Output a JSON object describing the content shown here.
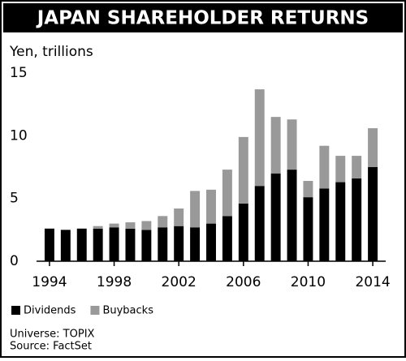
{
  "chart_data": {
    "type": "bar",
    "stacked": true,
    "title": "JAPAN SHAREHOLDER RETURNS",
    "y_label": "Yen, trillions",
    "x": [
      1994,
      1995,
      1996,
      1997,
      1998,
      1999,
      2000,
      2001,
      2002,
      2003,
      2004,
      2005,
      2006,
      2007,
      2008,
      2009,
      2010,
      2011,
      2012,
      2013,
      2014
    ],
    "xlim": [
      1993.2,
      2014.8
    ],
    "xticks": [
      1994,
      1998,
      2002,
      2006,
      2010,
      2014
    ],
    "ylim": [
      0,
      15
    ],
    "yticks": [
      0,
      5,
      10,
      15
    ],
    "series": [
      {
        "name": "Dividends",
        "color": "#000000",
        "values": [
          2.6,
          2.5,
          2.6,
          2.6,
          2.7,
          2.6,
          2.5,
          2.7,
          2.8,
          2.7,
          3.0,
          3.6,
          4.6,
          6.0,
          7.0,
          7.3,
          5.1,
          5.8,
          6.3,
          6.6,
          7.5
        ]
      },
      {
        "name": "Buybacks",
        "color": "#999999",
        "values": [
          0,
          0,
          0,
          0.2,
          0.3,
          0.5,
          0.7,
          0.9,
          1.4,
          2.9,
          2.7,
          3.7,
          5.3,
          7.7,
          4.5,
          4.0,
          1.3,
          3.4,
          2.1,
          1.8,
          3.1
        ]
      }
    ],
    "notes": [
      "Universe: TOPIX",
      "Source: FactSet"
    ]
  }
}
